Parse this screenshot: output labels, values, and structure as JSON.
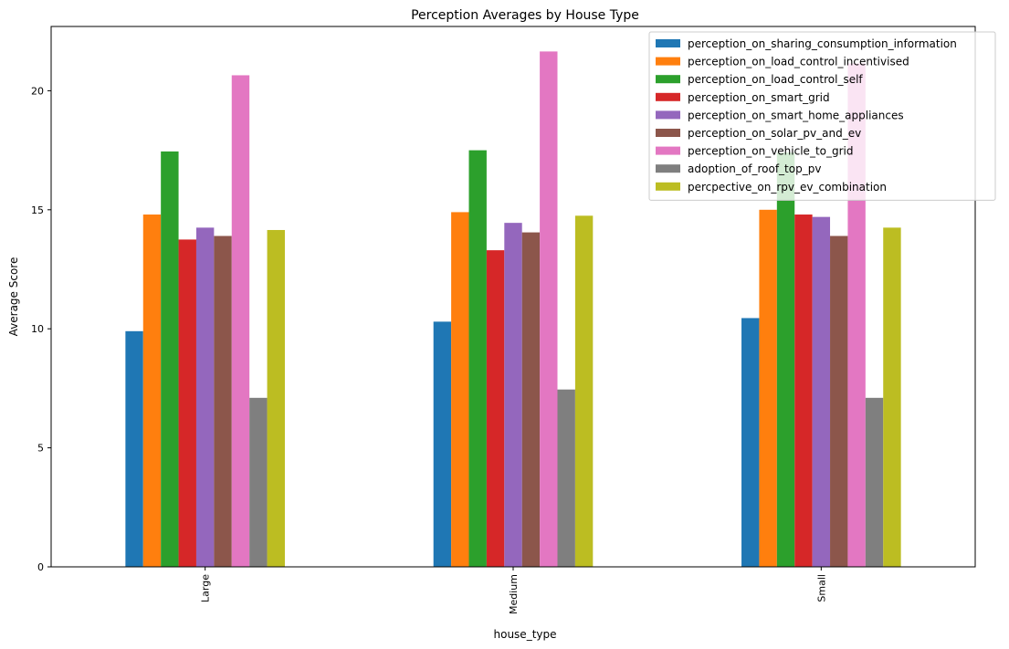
{
  "chart_data": {
    "type": "bar",
    "title": "Perception Averages by House Type",
    "xlabel": "house_type",
    "ylabel": "Average Score",
    "categories": [
      "Large",
      "Medium",
      "Small"
    ],
    "ylim": [
      0,
      22.7
    ],
    "yticks": [
      0,
      5,
      10,
      15,
      20
    ],
    "grid": false,
    "legend_position": "top-right",
    "series": [
      {
        "name": "perception_on_sharing_consumption_information",
        "color": "#1f77b4",
        "values": [
          9.9,
          10.3,
          10.45
        ]
      },
      {
        "name": "perception_on_load_control_incentivised",
        "color": "#ff7f0e",
        "values": [
          14.8,
          14.9,
          15.0
        ]
      },
      {
        "name": "perception_on_load_control_self",
        "color": "#2ca02c",
        "values": [
          17.45,
          17.5,
          17.4
        ]
      },
      {
        "name": "perception_on_smart_grid",
        "color": "#d62728",
        "values": [
          13.75,
          13.3,
          14.8
        ]
      },
      {
        "name": "perception_on_smart_home_appliances",
        "color": "#9467bd",
        "values": [
          14.25,
          14.45,
          14.7
        ]
      },
      {
        "name": "perception_on_solar_pv_and_ev",
        "color": "#8c564b",
        "values": [
          13.9,
          14.05,
          13.9
        ]
      },
      {
        "name": "perception_on_vehicle_to_grid",
        "color": "#e377c2",
        "values": [
          20.65,
          21.65,
          21.15
        ]
      },
      {
        "name": "adoption_of_roof_top_pv",
        "color": "#7f7f7f",
        "values": [
          7.1,
          7.45,
          7.1
        ]
      },
      {
        "name": "percpective_on_rpv_ev_combination",
        "color": "#bcbd22",
        "values": [
          14.15,
          14.75,
          14.25
        ]
      }
    ]
  }
}
